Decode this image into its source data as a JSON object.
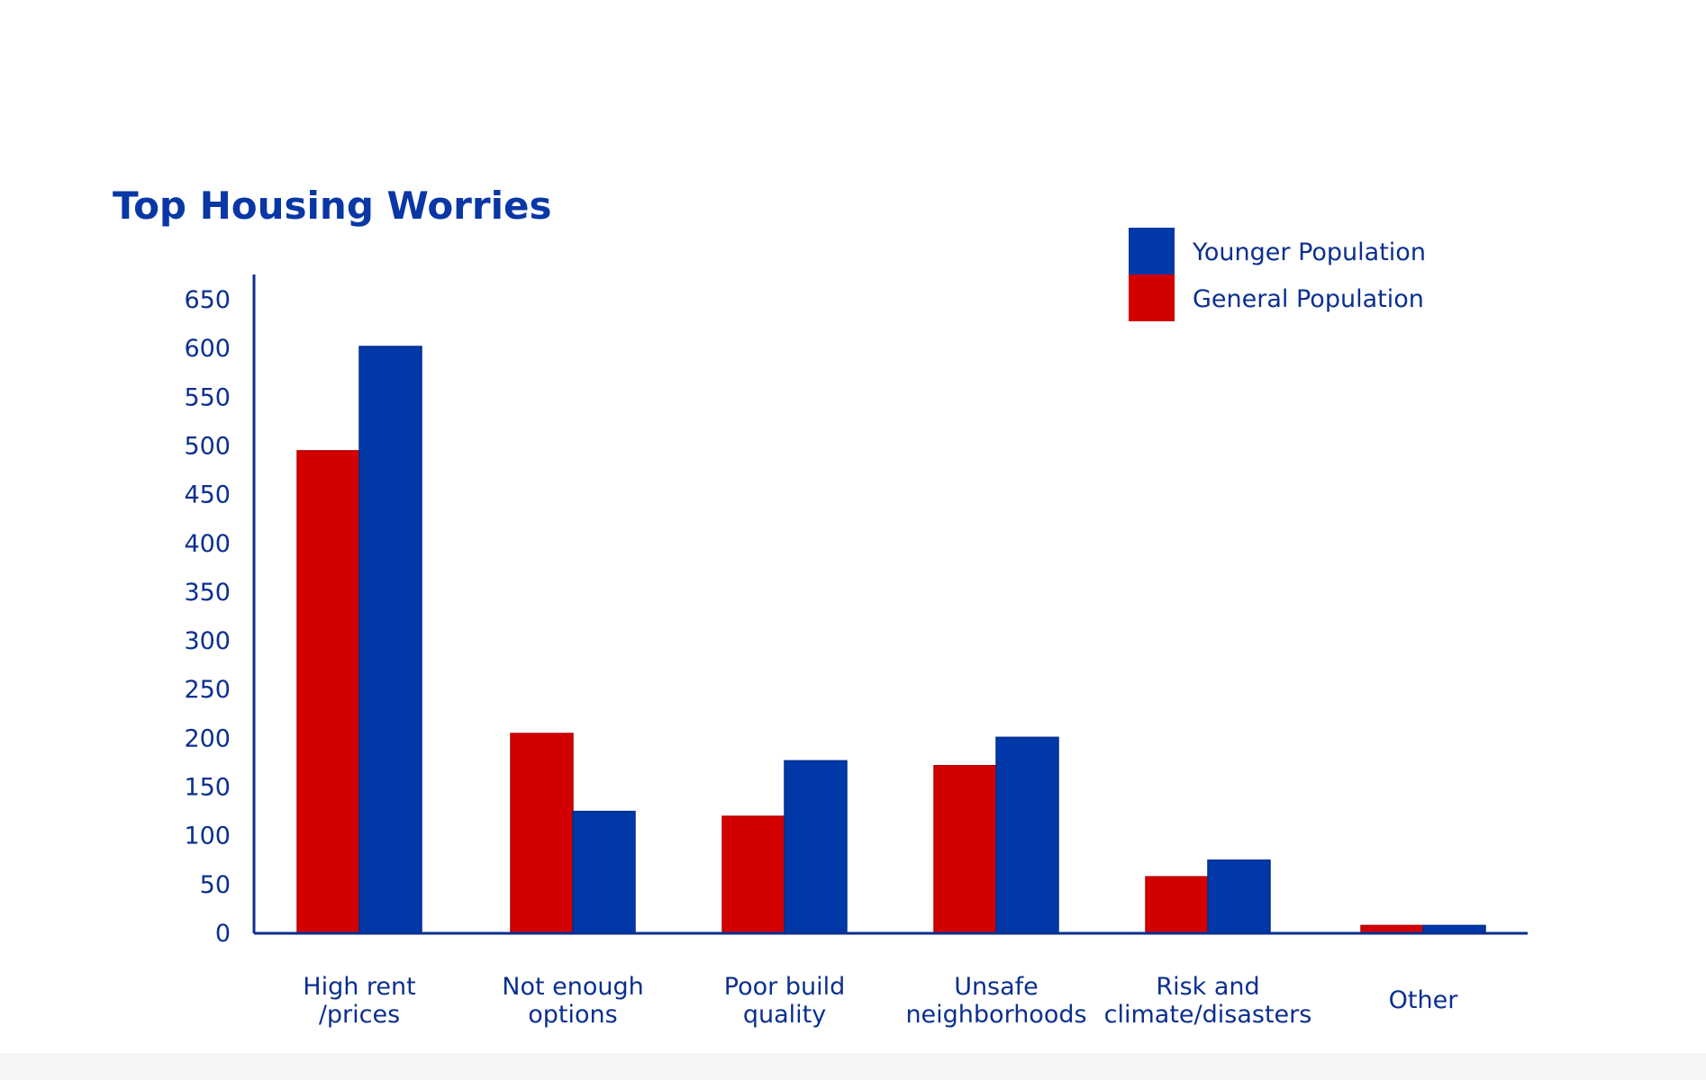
{
  "chart_data": {
    "type": "bar",
    "title": "Top Housing Worries",
    "categories": [
      [
        "High rent",
        "/prices"
      ],
      [
        "Not enough",
        "options"
      ],
      [
        "Poor build",
        "quality"
      ],
      [
        "Unsafe",
        "neighborhoods"
      ],
      [
        "Risk and",
        "climate/disasters"
      ],
      [
        "Other"
      ]
    ],
    "series": [
      {
        "name": "General Population",
        "color": "#d30000",
        "values": [
          495,
          205,
          120,
          172,
          58,
          8
        ]
      },
      {
        "name": "Younger Population",
        "color": "#0038a8",
        "values": [
          602,
          125,
          177,
          201,
          75,
          8
        ]
      }
    ],
    "yticks": [
      0,
      50,
      100,
      150,
      200,
      250,
      300,
      350,
      400,
      450,
      500,
      550,
      600,
      650
    ],
    "ylim": [
      0,
      650
    ],
    "grid": false,
    "legend": {
      "position": "top-right",
      "order": [
        "Younger Population",
        "General Population"
      ]
    },
    "axis_color": "#0b2f8f"
  }
}
